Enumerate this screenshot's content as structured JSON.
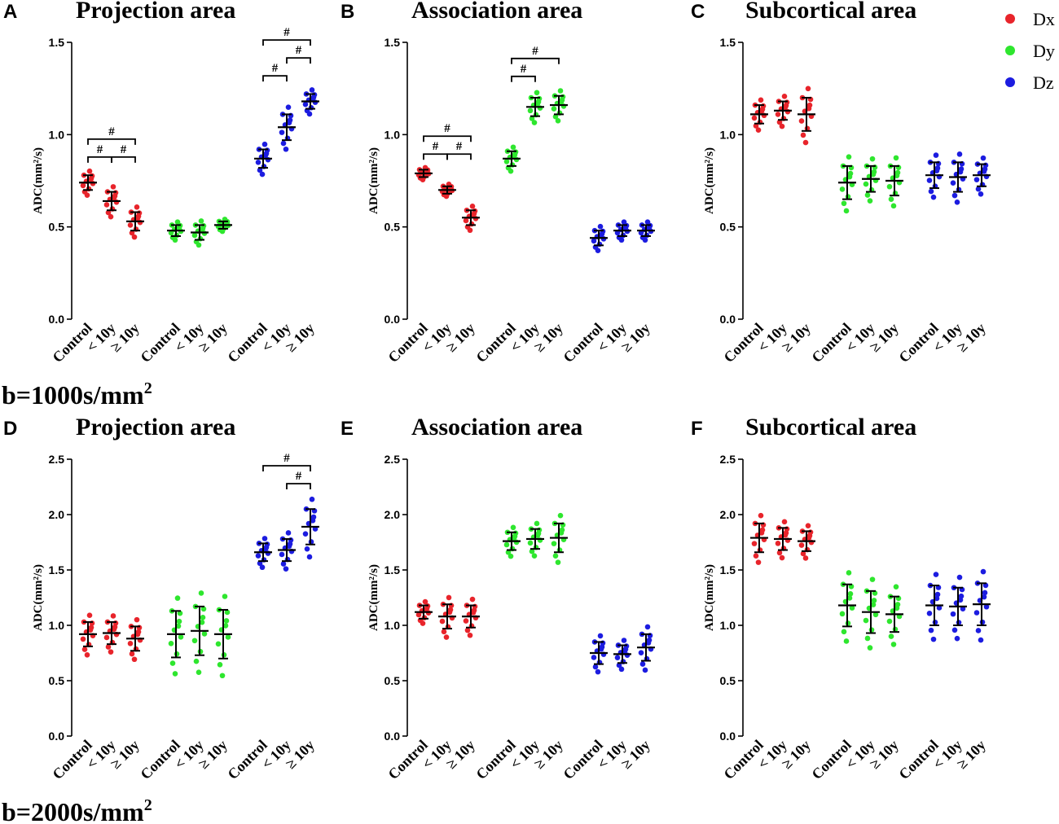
{
  "figure": {
    "categories": [
      "Control",
      "< 10y",
      "≥ 10y"
    ],
    "legend": [
      {
        "name": "Dx",
        "color": "#e8242b"
      },
      {
        "name": "Dy",
        "color": "#2ee62e"
      },
      {
        "name": "Dz",
        "color": "#1c1ce0"
      }
    ],
    "sig_symbol": "#",
    "rows": [
      {
        "b_label": "b=1000s/mm",
        "b_sup": "2"
      },
      {
        "b_label": "b=2000s/mm",
        "b_sup": "2"
      }
    ]
  },
  "chart_data": [
    {
      "panel": "A",
      "title": "Projection   area",
      "type": "scatter",
      "ylabel": "ADC(mm²/s)",
      "ylim": [
        0,
        1.5
      ],
      "yticks": [
        0.0,
        0.5,
        1.0,
        1.5
      ],
      "ytick_labels": [
        "0.0",
        "0.5",
        "1.0",
        "1.5"
      ],
      "series": [
        {
          "name": "Dx",
          "groups": [
            {
              "mean": 0.74,
              "sd": 0.04
            },
            {
              "mean": 0.64,
              "sd": 0.05
            },
            {
              "mean": 0.53,
              "sd": 0.05
            }
          ]
        },
        {
          "name": "Dy",
          "groups": [
            {
              "mean": 0.48,
              "sd": 0.03
            },
            {
              "mean": 0.47,
              "sd": 0.04
            },
            {
              "mean": 0.51,
              "sd": 0.02
            }
          ]
        },
        {
          "name": "Dz",
          "groups": [
            {
              "mean": 0.87,
              "sd": 0.05
            },
            {
              "mean": 1.04,
              "sd": 0.07
            },
            {
              "mean": 1.18,
              "sd": 0.04
            }
          ]
        }
      ],
      "significance": [
        {
          "series": 0,
          "from": 0,
          "to": 1,
          "level": 0
        },
        {
          "series": 0,
          "from": 1,
          "to": 2,
          "level": 0
        },
        {
          "series": 0,
          "from": 0,
          "to": 2,
          "level": 1
        },
        {
          "series": 2,
          "from": 0,
          "to": 1,
          "level": 0
        },
        {
          "series": 2,
          "from": 1,
          "to": 2,
          "level": 1
        },
        {
          "series": 2,
          "from": 0,
          "to": 2,
          "level": 2
        }
      ]
    },
    {
      "panel": "B",
      "title": "Association   area",
      "type": "scatter",
      "ylabel": "ADC(mm²/s)",
      "ylim": [
        0,
        1.5
      ],
      "yticks": [
        0.0,
        0.5,
        1.0,
        1.5
      ],
      "ytick_labels": [
        "0.0",
        "0.5",
        "1.0",
        "1.5"
      ],
      "series": [
        {
          "name": "Dx",
          "groups": [
            {
              "mean": 0.79,
              "sd": 0.02
            },
            {
              "mean": 0.7,
              "sd": 0.02
            },
            {
              "mean": 0.55,
              "sd": 0.04
            }
          ]
        },
        {
          "name": "Dy",
          "groups": [
            {
              "mean": 0.87,
              "sd": 0.04
            },
            {
              "mean": 1.15,
              "sd": 0.05
            },
            {
              "mean": 1.16,
              "sd": 0.05
            }
          ]
        },
        {
          "name": "Dz",
          "groups": [
            {
              "mean": 0.44,
              "sd": 0.04
            },
            {
              "mean": 0.48,
              "sd": 0.03
            },
            {
              "mean": 0.48,
              "sd": 0.03
            }
          ]
        }
      ],
      "significance": [
        {
          "series": 0,
          "from": 0,
          "to": 1,
          "level": 0
        },
        {
          "series": 0,
          "from": 1,
          "to": 2,
          "level": 0
        },
        {
          "series": 0,
          "from": 0,
          "to": 2,
          "level": 1
        },
        {
          "series": 1,
          "from": 0,
          "to": 1,
          "level": 0
        },
        {
          "series": 1,
          "from": 0,
          "to": 2,
          "level": 1
        }
      ]
    },
    {
      "panel": "C",
      "title": "Subcortical   area",
      "type": "scatter",
      "ylabel": "ADC(mm²/s)",
      "ylim": [
        0,
        1.5
      ],
      "yticks": [
        0.0,
        0.5,
        1.0,
        1.5
      ],
      "ytick_labels": [
        "0.0",
        "0.5",
        "1.0",
        "1.5"
      ],
      "series": [
        {
          "name": "Dx",
          "groups": [
            {
              "mean": 1.11,
              "sd": 0.05
            },
            {
              "mean": 1.13,
              "sd": 0.05
            },
            {
              "mean": 1.11,
              "sd": 0.09
            }
          ]
        },
        {
          "name": "Dy",
          "groups": [
            {
              "mean": 0.74,
              "sd": 0.09
            },
            {
              "mean": 0.76,
              "sd": 0.07
            },
            {
              "mean": 0.75,
              "sd": 0.08
            }
          ]
        },
        {
          "name": "Dz",
          "groups": [
            {
              "mean": 0.78,
              "sd": 0.07
            },
            {
              "mean": 0.77,
              "sd": 0.08
            },
            {
              "mean": 0.78,
              "sd": 0.06
            }
          ]
        }
      ],
      "significance": []
    },
    {
      "panel": "D",
      "title": "Projection   area",
      "type": "scatter",
      "ylabel": "ADC(mm²/s)",
      "ylim": [
        0,
        2.5
      ],
      "yticks": [
        0.0,
        0.5,
        1.0,
        1.5,
        2.0,
        2.5
      ],
      "ytick_labels": [
        "0.0",
        "0.5",
        "1.0",
        "1.5",
        "2.0",
        "2.5"
      ],
      "series": [
        {
          "name": "Dx",
          "groups": [
            {
              "mean": 0.92,
              "sd": 0.11
            },
            {
              "mean": 0.93,
              "sd": 0.1
            },
            {
              "mean": 0.88,
              "sd": 0.11
            }
          ]
        },
        {
          "name": "Dy",
          "groups": [
            {
              "mean": 0.92,
              "sd": 0.21
            },
            {
              "mean": 0.95,
              "sd": 0.22
            },
            {
              "mean": 0.92,
              "sd": 0.22
            }
          ]
        },
        {
          "name": "Dz",
          "groups": [
            {
              "mean": 1.66,
              "sd": 0.08
            },
            {
              "mean": 1.68,
              "sd": 0.1
            },
            {
              "mean": 1.89,
              "sd": 0.16
            }
          ]
        }
      ],
      "significance": [
        {
          "series": 2,
          "from": 1,
          "to": 2,
          "level": 0
        },
        {
          "series": 2,
          "from": 0,
          "to": 2,
          "level": 1
        }
      ]
    },
    {
      "panel": "E",
      "title": "Association   area",
      "type": "scatter",
      "ylabel": "ADC(mm²/s)",
      "ylim": [
        0,
        2.5
      ],
      "yticks": [
        0.0,
        0.5,
        1.0,
        1.5,
        2.0,
        2.5
      ],
      "ytick_labels": [
        "0.0",
        "0.5",
        "1.0",
        "1.5",
        "2.0",
        "2.5"
      ],
      "series": [
        {
          "name": "Dx",
          "groups": [
            {
              "mean": 1.12,
              "sd": 0.06
            },
            {
              "mean": 1.08,
              "sd": 0.11
            },
            {
              "mean": 1.08,
              "sd": 0.1
            }
          ]
        },
        {
          "name": "Dy",
          "groups": [
            {
              "mean": 1.76,
              "sd": 0.08
            },
            {
              "mean": 1.78,
              "sd": 0.09
            },
            {
              "mean": 1.79,
              "sd": 0.13
            }
          ]
        },
        {
          "name": "Dz",
          "groups": [
            {
              "mean": 0.75,
              "sd": 0.1
            },
            {
              "mean": 0.74,
              "sd": 0.08
            },
            {
              "mean": 0.8,
              "sd": 0.12
            }
          ]
        }
      ],
      "significance": []
    },
    {
      "panel": "F",
      "title": "Subcortical   area",
      "type": "scatter",
      "ylabel": "ADC(mm²/s)",
      "ylim": [
        0,
        2.5
      ],
      "yticks": [
        0.0,
        0.5,
        1.0,
        1.5,
        2.0,
        2.5
      ],
      "ytick_labels": [
        "0.0",
        "0.5",
        "1.0",
        "1.5",
        "2.0",
        "2.5"
      ],
      "series": [
        {
          "name": "Dx",
          "groups": [
            {
              "mean": 1.79,
              "sd": 0.13
            },
            {
              "mean": 1.78,
              "sd": 0.1
            },
            {
              "mean": 1.76,
              "sd": 0.09
            }
          ]
        },
        {
          "name": "Dy",
          "groups": [
            {
              "mean": 1.18,
              "sd": 0.19
            },
            {
              "mean": 1.12,
              "sd": 0.19
            },
            {
              "mean": 1.1,
              "sd": 0.16
            }
          ]
        },
        {
          "name": "Dz",
          "groups": [
            {
              "mean": 1.18,
              "sd": 0.18
            },
            {
              "mean": 1.17,
              "sd": 0.17
            },
            {
              "mean": 1.19,
              "sd": 0.19
            }
          ]
        }
      ],
      "significance": []
    }
  ]
}
